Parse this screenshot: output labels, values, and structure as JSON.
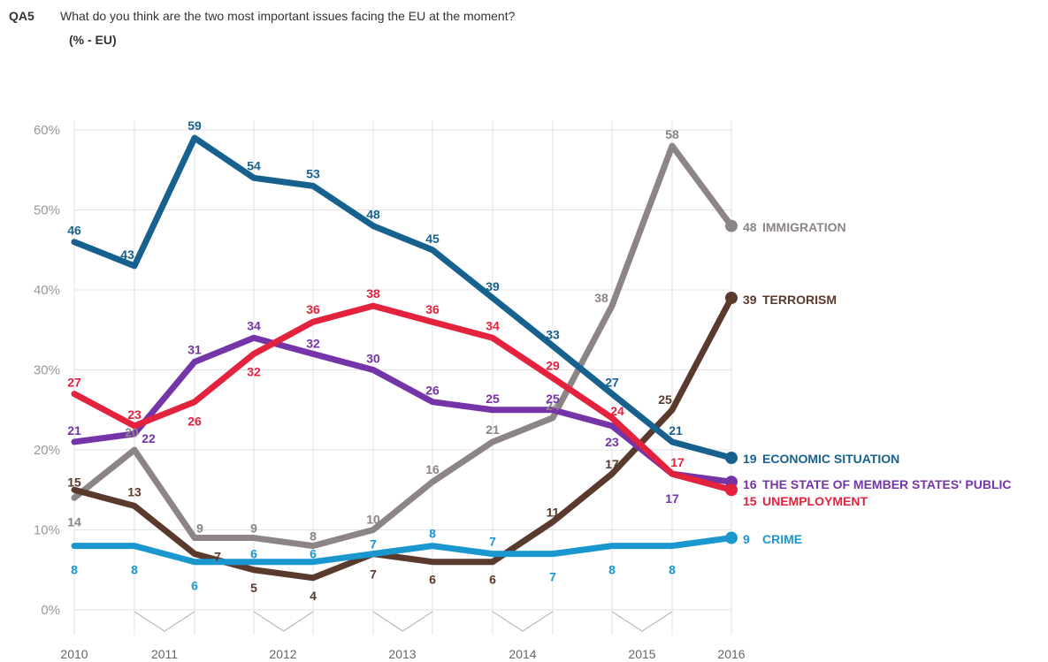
{
  "header": {
    "question_number": "QA5",
    "question": "What do you think are the two most important issues facing the EU at the moment?",
    "subtitle": "(% - EU)"
  },
  "chart_data": {
    "type": "line",
    "title": "What do you think are the two most important issues facing the EU at the moment?",
    "subtitle": "(% - EU)",
    "ylim": [
      0,
      60
    ],
    "yticks": [
      "0%",
      "10%",
      "20%",
      "30%",
      "40%",
      "50%",
      "60%"
    ],
    "year_labels": [
      "2010",
      "2011",
      "2012",
      "2013",
      "2014",
      "2015",
      "2016"
    ],
    "grid": true,
    "legend": "end-of-line labels",
    "series": [
      {
        "name": "IMMIGRATION",
        "end_value": "48",
        "color": "#8c8485",
        "values": [
          14,
          20,
          9,
          9,
          8,
          10,
          16,
          21,
          24,
          38,
          58,
          48
        ]
      },
      {
        "name": "TERRORISM",
        "end_value": "39",
        "color": "#5b3a2e",
        "values": [
          15,
          13,
          7,
          5,
          4,
          7,
          6,
          6,
          11,
          17,
          25,
          39
        ]
      },
      {
        "name": "ECONOMIC SITUATION",
        "end_value": "19",
        "color": "#17618f",
        "values": [
          46,
          43,
          59,
          54,
          53,
          48,
          45,
          39,
          33,
          27,
          21,
          19
        ]
      },
      {
        "name": "THE STATE OF MEMBER STATES' PUBLIC",
        "end_value": "16",
        "color": "#7534a8",
        "values": [
          21,
          22,
          31,
          34,
          32,
          30,
          26,
          25,
          25,
          23,
          17,
          16
        ]
      },
      {
        "name": "UNEMPLOYMENT",
        "end_value": "15",
        "color": "#e3223e",
        "values": [
          27,
          23,
          26,
          32,
          36,
          38,
          36,
          34,
          29,
          24,
          17,
          15
        ]
      },
      {
        "name": "CRIME",
        "end_value": "9",
        "color": "#1b97cf",
        "values": [
          8,
          8,
          6,
          6,
          6,
          7,
          8,
          7,
          7,
          8,
          8,
          9
        ]
      }
    ]
  }
}
